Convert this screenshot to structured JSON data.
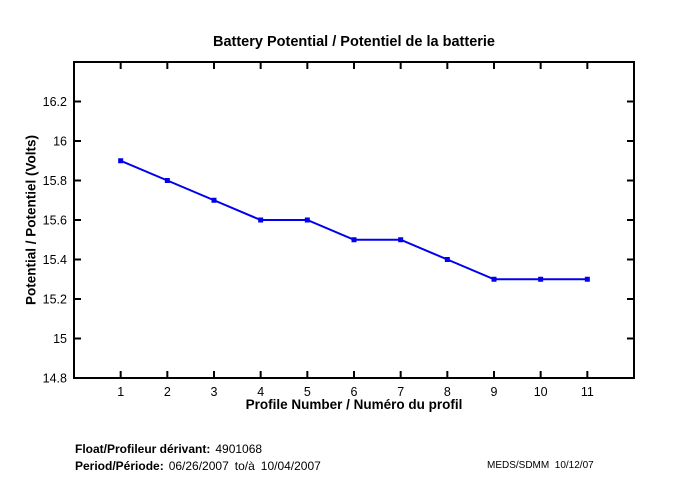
{
  "page": {
    "background": "#FFFFFF"
  },
  "chart_data": {
    "type": "line",
    "title": "Battery Potential / Potentiel de la batterie",
    "xlabel": "Profile Number / Numéro du profil",
    "ylabel": "Potential / Potentiel (Volts)",
    "x": [
      1,
      2,
      3,
      4,
      5,
      6,
      7,
      8,
      9,
      10,
      11
    ],
    "values": [
      15.9,
      15.8,
      15.7,
      15.6,
      15.6,
      15.5,
      15.5,
      15.4,
      15.3,
      15.3,
      15.3
    ],
    "series_name": "Battery potential",
    "xlim": [
      0,
      12
    ],
    "ylim": [
      14.8,
      16.4
    ],
    "xticks": [
      1,
      2,
      3,
      4,
      5,
      6,
      7,
      8,
      9,
      10,
      11
    ],
    "xtick_labels": [
      "1",
      "2",
      "3",
      "4",
      "5",
      "6",
      "7",
      "8",
      "9",
      "10",
      "11"
    ],
    "yticks": [
      14.8,
      15,
      15.2,
      15.4,
      15.6,
      15.8,
      16,
      16.2
    ],
    "ytick_labels": [
      "14.8",
      "15",
      "15.2",
      "15.4",
      "15.6",
      "15.8",
      "16",
      "16.2"
    ],
    "line_color": "#0000EE",
    "axis_color": "#000000",
    "marker": "square",
    "grid": false,
    "legend": "none"
  },
  "footer": {
    "float_label": "Float/Profileur dérivant:",
    "float_value": "4901068",
    "period_label": "Period/Période:",
    "period_from": "06/26/2007",
    "period_separator": "to/à",
    "period_to": "10/04/2007",
    "credit": "MEDS/SDMM  10/12/07"
  }
}
